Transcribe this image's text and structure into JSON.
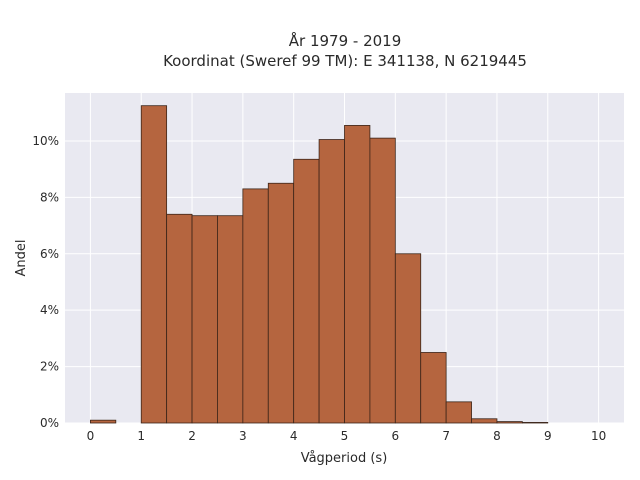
{
  "chart_data": {
    "type": "bar",
    "title": "År 1979 - 2019",
    "subtitle": "Koordinat (Sweref 99 TM): E 341138, N 6219445",
    "xlabel": "Vågperiod (s)",
    "ylabel": "Andel",
    "xlim": [
      -0.5,
      10.5
    ],
    "ylim": [
      0,
      11.7
    ],
    "x_ticks": [
      0,
      1,
      2,
      3,
      4,
      5,
      6,
      7,
      8,
      9,
      10
    ],
    "y_ticks": [
      0,
      2,
      4,
      6,
      8,
      10
    ],
    "y_tick_labels": [
      "0%",
      "2%",
      "4%",
      "6%",
      "8%",
      "10%"
    ],
    "bin_width": 0.5,
    "bins": [
      {
        "x0": 0.0,
        "value": 0.1
      },
      {
        "x0": 0.5,
        "value": 0.0
      },
      {
        "x0": 1.0,
        "value": 11.25
      },
      {
        "x0": 1.5,
        "value": 7.4
      },
      {
        "x0": 2.0,
        "value": 7.35
      },
      {
        "x0": 2.5,
        "value": 7.35
      },
      {
        "x0": 3.0,
        "value": 8.3
      },
      {
        "x0": 3.5,
        "value": 8.5
      },
      {
        "x0": 4.0,
        "value": 9.35
      },
      {
        "x0": 4.5,
        "value": 10.05
      },
      {
        "x0": 5.0,
        "value": 10.55
      },
      {
        "x0": 5.5,
        "value": 10.1
      },
      {
        "x0": 6.0,
        "value": 6.0
      },
      {
        "x0": 6.5,
        "value": 2.5
      },
      {
        "x0": 7.0,
        "value": 0.75
      },
      {
        "x0": 7.5,
        "value": 0.15
      },
      {
        "x0": 8.0,
        "value": 0.05
      },
      {
        "x0": 8.5,
        "value": 0.02
      }
    ],
    "grid": true,
    "colors": {
      "bar_fill": "#b5653f",
      "bar_stroke": "#3b2418",
      "plot_bg": "#e9e9f1",
      "grid": "#ffffff"
    }
  }
}
